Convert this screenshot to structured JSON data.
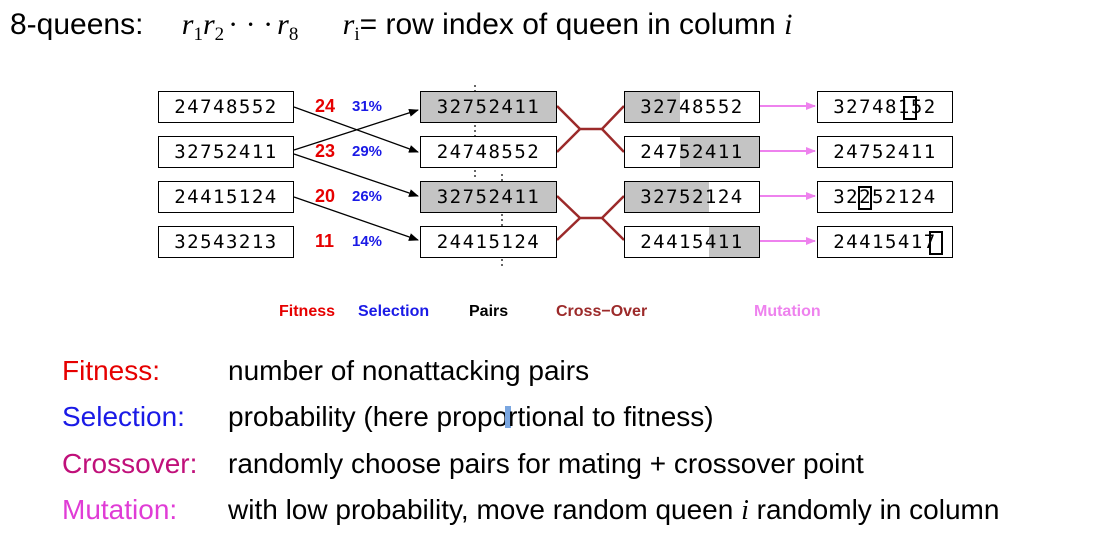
{
  "title": {
    "prefix": "8-queens:",
    "r": "r",
    "s1": "1",
    "s2": "2",
    "dots": "· · ·",
    "s8": "8",
    "ri": "r",
    "i": "i",
    "eq": "= row index of queen in column",
    "col_i": "i"
  },
  "population": [
    "24748552",
    "32752411",
    "24415124",
    "32543213"
  ],
  "fitness": [
    "24",
    "23",
    "20",
    "11"
  ],
  "selection": [
    "31%",
    "29%",
    "26%",
    "14%"
  ],
  "pairs": [
    "32752411",
    "24748552",
    "32752411",
    "24415124"
  ],
  "crossover": [
    "32748552",
    "24752411",
    "32752124",
    "24415411"
  ],
  "mutation": [
    "32748152",
    "24752411",
    "32252124",
    "24415417"
  ],
  "stage_labels": {
    "fitness": "Fitness",
    "selection": "Selection",
    "pairs": "Pairs",
    "crossover": "Cross−Over",
    "mutation": "Mutation"
  },
  "colors": {
    "fitness": "#e60000",
    "selection": "#1a1ae6",
    "crossover_link": "#9c2a2a",
    "mutation_arrow": "#ee82ee",
    "shade": "#c4c4c4"
  },
  "definitions": [
    {
      "term": "Fitness:",
      "text": "number of nonattacking pairs",
      "color": "#e60000"
    },
    {
      "term": "Selection:",
      "text_a": "probability (here propo",
      "text_b": "rtional to fitness)",
      "color": "#1a1ae6"
    },
    {
      "term": "Crossover:",
      "text": "randomly choose pairs for mating + crossover point",
      "color": "#c0107a"
    },
    {
      "term": "Mutation:",
      "text_a": "with low probability, move random queen ",
      "var": "i",
      "text_b": " randomly in column",
      "color": "#e03cd6"
    }
  ]
}
